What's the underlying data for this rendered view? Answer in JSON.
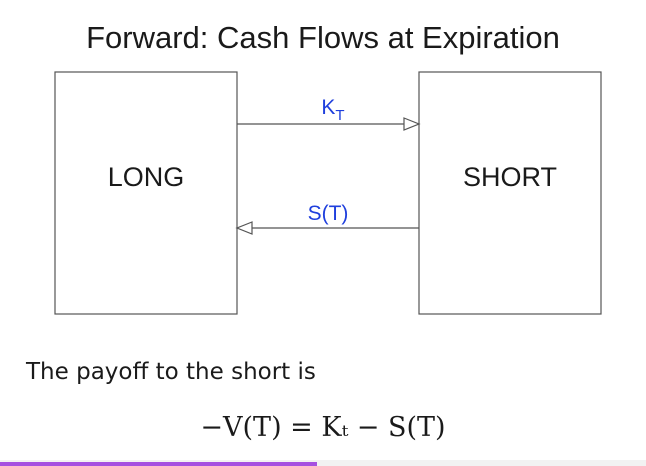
{
  "title": "Forward: Cash Flows at Expiration",
  "nodes": {
    "long": "LONG",
    "short": "SHORT"
  },
  "flows": {
    "long_to_short": {
      "base": "K",
      "sub": "T"
    },
    "short_to_long": "S(T)"
  },
  "payoff_text": "The payoff to the short is",
  "formula": "−V(T) = Kₜ − S(T)",
  "colors": {
    "flow_label": "#1f3fdd",
    "box_stroke": "#555555",
    "progress": "#a550e0"
  },
  "progress_fraction": 0.49
}
